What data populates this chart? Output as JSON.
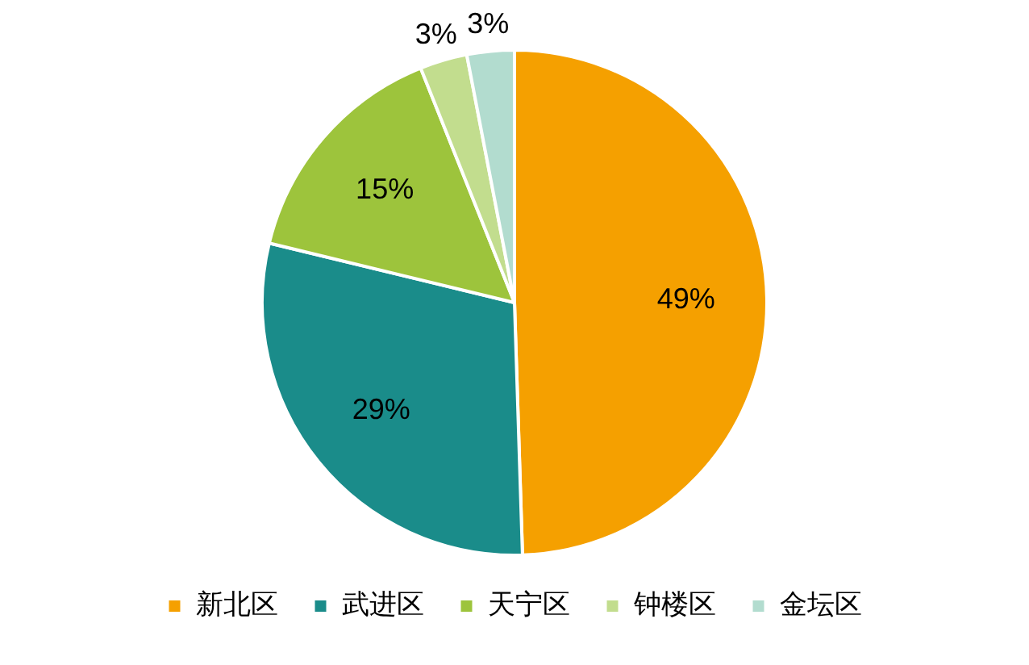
{
  "chart_data": {
    "type": "pie",
    "categories": [
      "新北区",
      "武进区",
      "天宁区",
      "钟楼区",
      "金坛区"
    ],
    "values": [
      49,
      29,
      15,
      3,
      3
    ],
    "value_labels": [
      "49%",
      "29%",
      "15%",
      "3%",
      "3%"
    ],
    "colors": [
      "#f5a000",
      "#1a8c8a",
      "#9dc43c",
      "#c2dd8e",
      "#b2dccf"
    ],
    "legend": "bottom"
  }
}
